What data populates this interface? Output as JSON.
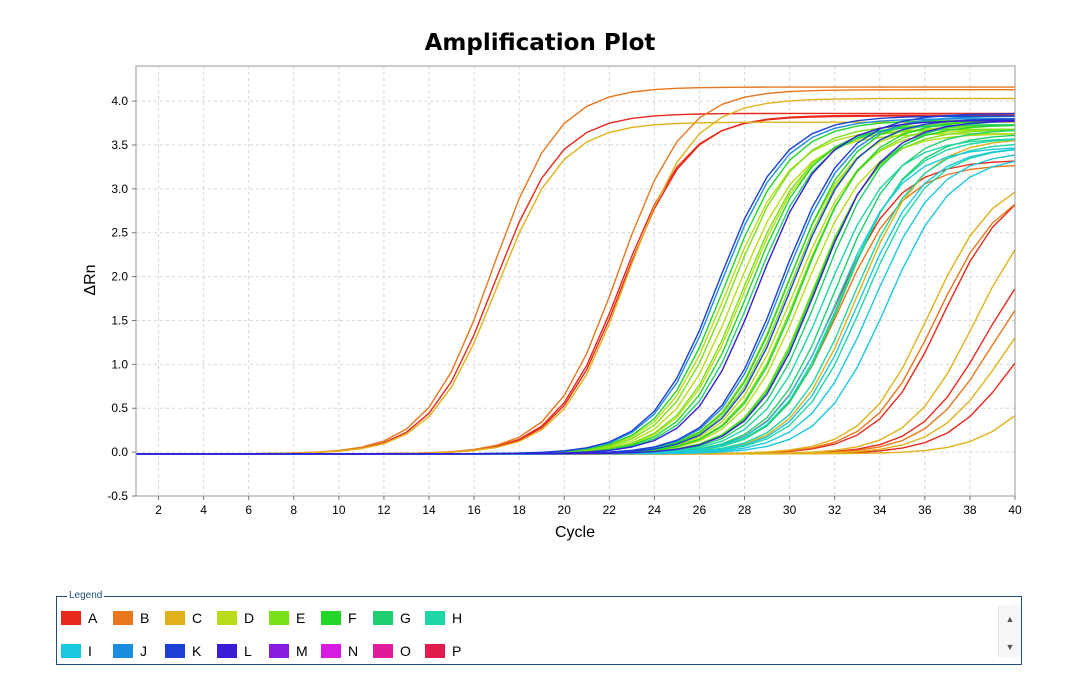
{
  "chart_data": {
    "type": "line",
    "title": "Amplification Plot",
    "xlabel": "Cycle",
    "ylabel": "ΔRn",
    "xlim": [
      1,
      40
    ],
    "ylim": [
      -0.5,
      4.4
    ],
    "xticks": [
      "2",
      "4",
      "6",
      "8",
      "10",
      "12",
      "14",
      "16",
      "18",
      "20",
      "22",
      "24",
      "26",
      "28",
      "30",
      "32",
      "34",
      "36",
      "38",
      "40"
    ],
    "yticks": [
      "-0.5",
      "0.0",
      "0.5",
      "1.0",
      "1.5",
      "2.0",
      "2.5",
      "3.0",
      "3.5",
      "4.0"
    ],
    "grid": true,
    "series": [
      {
        "name": "A",
        "color": "#e8291c",
        "curves": [
          {
            "Ct": 16.9,
            "plateau": 3.88
          },
          {
            "Ct": 22.5,
            "plateau": 3.85
          },
          {
            "Ct": 22.6,
            "plateau": 3.86
          },
          {
            "Ct": 32.0,
            "plateau": 3.35
          },
          {
            "Ct": 36.8,
            "plateau": 3.15
          },
          {
            "Ct": 38.6,
            "plateau": 2.6
          },
          {
            "Ct": 39.9,
            "plateau": 2.0
          }
        ]
      },
      {
        "name": "B",
        "color": "#e8761c",
        "curves": [
          {
            "Ct": 16.8,
            "plateau": 4.18
          },
          {
            "Ct": 22.4,
            "plateau": 4.15
          },
          {
            "Ct": 32.2,
            "plateau": 3.3
          },
          {
            "Ct": 36.5,
            "plateau": 3.1
          },
          {
            "Ct": 38.9,
            "plateau": 2.4
          }
        ]
      },
      {
        "name": "C",
        "color": "#e0b21a",
        "curves": [
          {
            "Ct": 17.0,
            "plateau": 3.78
          },
          {
            "Ct": 22.8,
            "plateau": 4.05
          },
          {
            "Ct": 33.0,
            "plateau": 3.6
          },
          {
            "Ct": 36.2,
            "plateau": 3.2
          },
          {
            "Ct": 38.2,
            "plateau": 3.0
          },
          {
            "Ct": 39.4,
            "plateau": 2.2
          },
          {
            "Ct": 41.3,
            "plateau": 1.5
          }
        ]
      },
      {
        "name": "D",
        "color": "#b9dc1a",
        "curves": [
          {
            "Ct": 27.2,
            "plateau": 3.7
          },
          {
            "Ct": 27.6,
            "plateau": 3.65
          },
          {
            "Ct": 28.0,
            "plateau": 3.7
          },
          {
            "Ct": 29.8,
            "plateau": 3.75
          },
          {
            "Ct": 30.2,
            "plateau": 3.7
          },
          {
            "Ct": 30.6,
            "plateau": 3.65
          }
        ]
      },
      {
        "name": "E",
        "color": "#7ae01a",
        "curves": [
          {
            "Ct": 27.4,
            "plateau": 3.75
          },
          {
            "Ct": 27.9,
            "plateau": 3.7
          },
          {
            "Ct": 30.0,
            "plateau": 3.8
          },
          {
            "Ct": 30.4,
            "plateau": 3.75
          },
          {
            "Ct": 31.0,
            "plateau": 3.7
          }
        ]
      },
      {
        "name": "F",
        "color": "#22d62a",
        "curves": [
          {
            "Ct": 27.1,
            "plateau": 3.8
          },
          {
            "Ct": 28.2,
            "plateau": 3.75
          },
          {
            "Ct": 29.9,
            "plateau": 3.85
          },
          {
            "Ct": 30.5,
            "plateau": 3.8
          },
          {
            "Ct": 31.1,
            "plateau": 3.75
          }
        ]
      },
      {
        "name": "G",
        "color": "#1fcf6e",
        "curves": [
          {
            "Ct": 28.4,
            "plateau": 3.75
          },
          {
            "Ct": 31.4,
            "plateau": 3.8
          },
          {
            "Ct": 32.0,
            "plateau": 3.7
          },
          {
            "Ct": 32.4,
            "plateau": 3.65
          }
        ]
      },
      {
        "name": "H",
        "color": "#1fd6a6",
        "curves": [
          {
            "Ct": 31.6,
            "plateau": 3.6
          },
          {
            "Ct": 32.3,
            "plateau": 3.6
          },
          {
            "Ct": 32.8,
            "plateau": 3.55
          },
          {
            "Ct": 33.3,
            "plateau": 3.5
          }
        ]
      },
      {
        "name": "I",
        "color": "#1cc8e0",
        "curves": [
          {
            "Ct": 32.1,
            "plateau": 3.5
          },
          {
            "Ct": 33.1,
            "plateau": 3.5
          },
          {
            "Ct": 33.7,
            "plateau": 3.45
          },
          {
            "Ct": 34.3,
            "plateau": 3.4
          }
        ]
      },
      {
        "name": "J",
        "color": "#1c8ce0",
        "curves": [
          {
            "Ct": 26.9,
            "plateau": 3.82
          },
          {
            "Ct": 29.7,
            "plateau": 3.85
          }
        ]
      },
      {
        "name": "K",
        "color": "#1c3fd6",
        "curves": [
          {
            "Ct": 26.8,
            "plateau": 3.85
          },
          {
            "Ct": 29.6,
            "plateau": 3.88
          },
          {
            "Ct": 30.1,
            "plateau": 3.82
          }
        ]
      },
      {
        "name": "L",
        "color": "#3a1cd6",
        "curves": [
          {
            "Ct": 28.6,
            "plateau": 3.8
          },
          {
            "Ct": 31.2,
            "plateau": 3.8
          }
        ]
      },
      {
        "name": "M",
        "color": "#8a1ce0",
        "curves": []
      },
      {
        "name": "N",
        "color": "#d61ce0",
        "curves": []
      },
      {
        "name": "O",
        "color": "#e01c9a",
        "curves": []
      },
      {
        "name": "P",
        "color": "#e01c4f",
        "curves": []
      }
    ]
  },
  "legend": {
    "title": "Legend",
    "items": [
      {
        "label": "A",
        "color": "#e8291c"
      },
      {
        "label": "B",
        "color": "#e8761c"
      },
      {
        "label": "C",
        "color": "#e0b21a"
      },
      {
        "label": "D",
        "color": "#b9dc1a"
      },
      {
        "label": "E",
        "color": "#7ae01a"
      },
      {
        "label": "F",
        "color": "#22d62a"
      },
      {
        "label": "G",
        "color": "#1fcf6e"
      },
      {
        "label": "H",
        "color": "#1fd6a6"
      },
      {
        "label": "I",
        "color": "#1cc8e0"
      },
      {
        "label": "J",
        "color": "#1c8ce0"
      },
      {
        "label": "K",
        "color": "#1c3fd6"
      },
      {
        "label": "L",
        "color": "#3a1cd6"
      },
      {
        "label": "M",
        "color": "#8a1ce0"
      },
      {
        "label": "N",
        "color": "#d61ce0"
      },
      {
        "label": "O",
        "color": "#e01c9a"
      },
      {
        "label": "P",
        "color": "#e01c4f"
      }
    ],
    "scroll_up_icon": "triangle-up-icon",
    "scroll_down_icon": "triangle-down-icon"
  }
}
